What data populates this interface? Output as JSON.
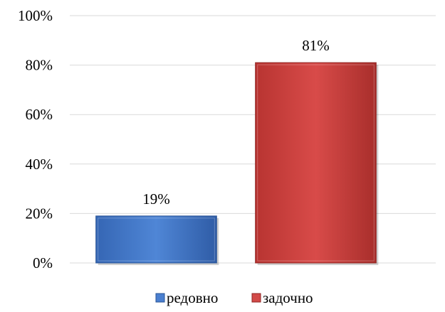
{
  "chart_data": {
    "type": "bar",
    "title": "",
    "xlabel": "",
    "ylabel": "",
    "categories": [
      "редовно",
      "задочно"
    ],
    "values": [
      19,
      81
    ],
    "value_labels": [
      "19%",
      "81%"
    ],
    "ylim": [
      0,
      100
    ],
    "yticks": [
      0,
      20,
      40,
      60,
      80,
      100
    ],
    "ytick_labels": [
      "0%",
      "20%",
      "40%",
      "60%",
      "80%",
      "100%"
    ],
    "grid": true,
    "legend": {
      "position": "bottom",
      "entries": [
        {
          "label": "редовно",
          "color": "#4a7fd0"
        },
        {
          "label": "задочно",
          "color": "#d24a48"
        }
      ]
    },
    "colors": [
      "#4a7fd0",
      "#d24a48"
    ]
  }
}
